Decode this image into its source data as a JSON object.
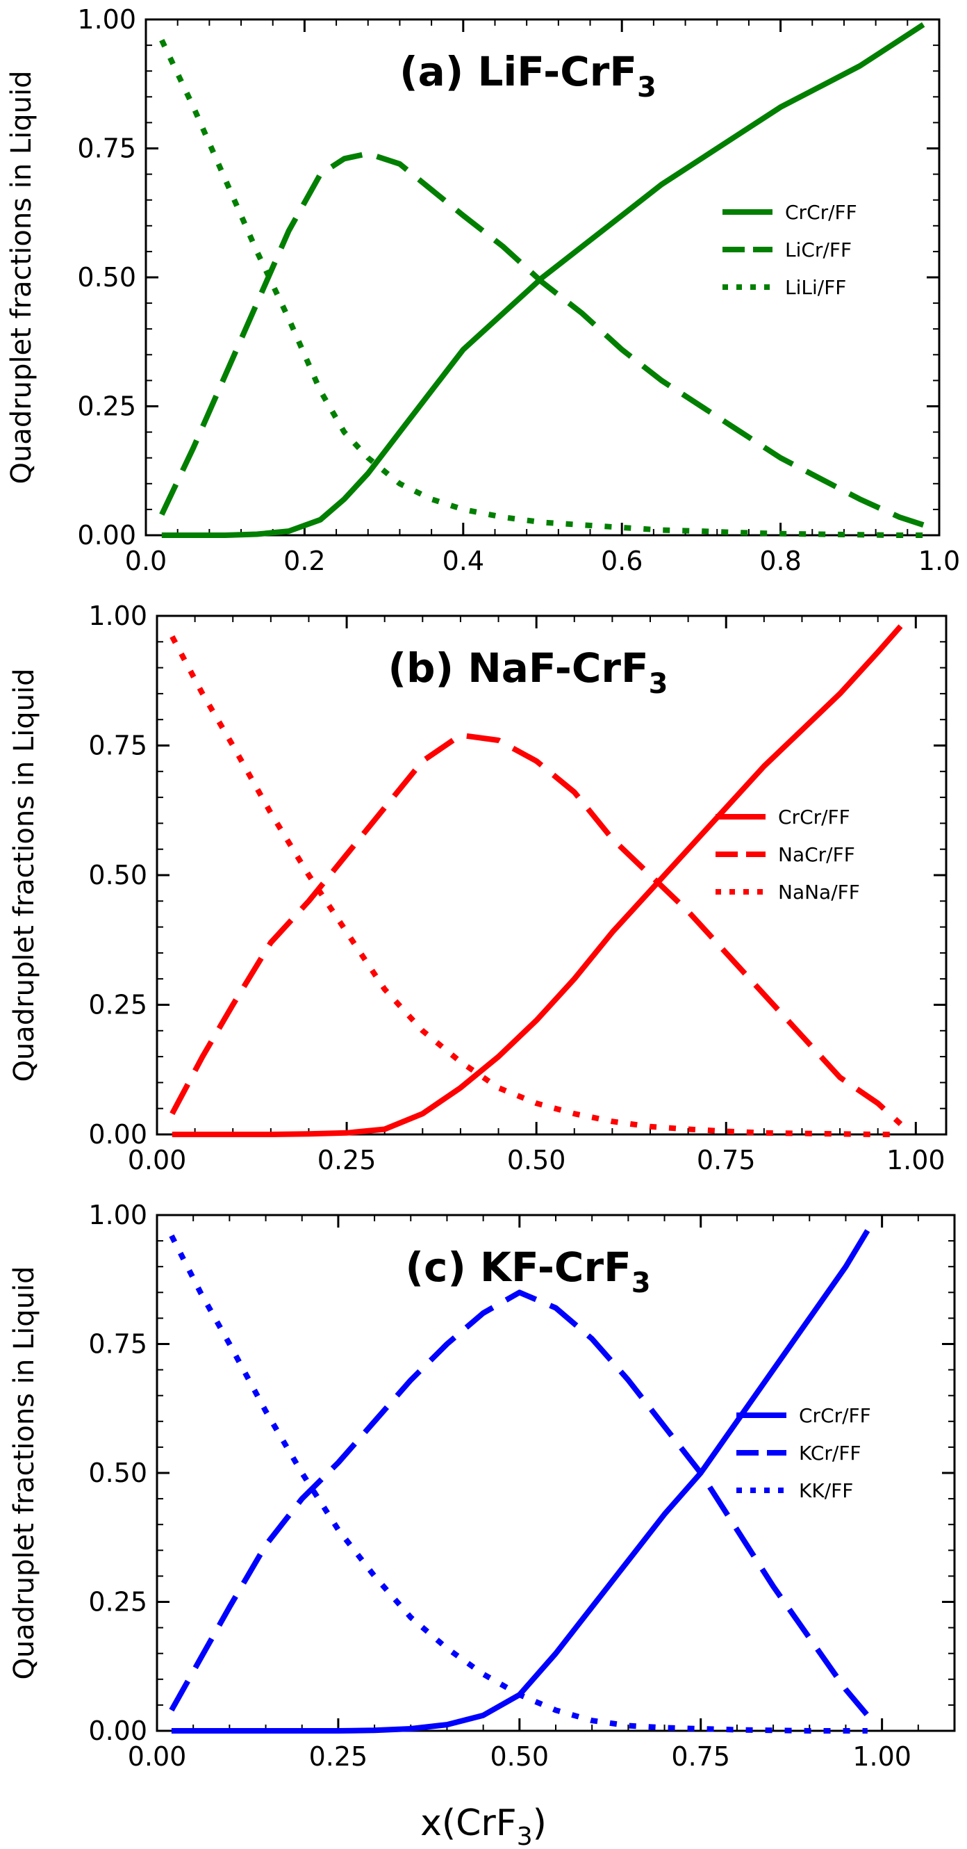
{
  "figure": {
    "x_axis_label_main": "x(CrF",
    "x_axis_label_sub": "3",
    "x_axis_label_end": ")"
  },
  "chart_data": [
    {
      "type": "line",
      "title": "(a) LiF-CrF",
      "title_sub": "3",
      "ylabel": "Quadruplet fractions in Liquid",
      "xlabel": "",
      "xlim": [
        0.0,
        1.0
      ],
      "ylim": [
        0.0,
        1.0
      ],
      "xticks": [
        "0.0",
        "0.2",
        "0.4",
        "0.6",
        "0.8",
        "1.0"
      ],
      "yticks": [
        "0.00",
        "0.25",
        "0.50",
        "0.75",
        "1.00"
      ],
      "color": "#007f00",
      "legend_position": "right",
      "x": [
        0.02,
        0.06,
        0.1,
        0.14,
        0.18,
        0.22,
        0.25,
        0.28,
        0.32,
        0.36,
        0.4,
        0.45,
        0.5,
        0.55,
        0.6,
        0.65,
        0.7,
        0.75,
        0.8,
        0.85,
        0.9,
        0.95,
        0.98
      ],
      "series": [
        {
          "name": "CrCr/FF",
          "style": "solid",
          "values": [
            0.0,
            0.0,
            0.0,
            0.002,
            0.008,
            0.03,
            0.07,
            0.12,
            0.2,
            0.28,
            0.36,
            0.43,
            0.5,
            0.56,
            0.62,
            0.68,
            0.73,
            0.78,
            0.83,
            0.87,
            0.91,
            0.96,
            0.99
          ]
        },
        {
          "name": "LiCr/FF",
          "style": "dashed",
          "values": [
            0.04,
            0.17,
            0.31,
            0.45,
            0.59,
            0.7,
            0.73,
            0.74,
            0.72,
            0.67,
            0.62,
            0.56,
            0.49,
            0.43,
            0.36,
            0.3,
            0.25,
            0.2,
            0.15,
            0.11,
            0.07,
            0.035,
            0.02
          ]
        },
        {
          "name": "LiLi/FF",
          "style": "dotted",
          "values": [
            0.96,
            0.83,
            0.69,
            0.55,
            0.42,
            0.28,
            0.2,
            0.15,
            0.1,
            0.07,
            0.05,
            0.035,
            0.025,
            0.02,
            0.015,
            0.01,
            0.008,
            0.005,
            0.003,
            0.002,
            0.001,
            0.0,
            0.0
          ]
        }
      ]
    },
    {
      "type": "line",
      "title": "(b) NaF-CrF",
      "title_sub": "3",
      "ylabel": "Quadruplet fractions in Liquid",
      "xlabel": "",
      "xlim": [
        0.0,
        1.04
      ],
      "ylim": [
        0.0,
        1.0
      ],
      "xticks": [
        "0.00",
        "0.25",
        "0.50",
        "0.75",
        "1.00"
      ],
      "yticks": [
        "0.00",
        "0.25",
        "0.50",
        "0.75",
        "1.00"
      ],
      "color": "#ff0000",
      "legend_position": "right",
      "x": [
        0.02,
        0.06,
        0.1,
        0.15,
        0.2,
        0.25,
        0.3,
        0.35,
        0.4,
        0.45,
        0.5,
        0.55,
        0.6,
        0.65,
        0.7,
        0.75,
        0.8,
        0.85,
        0.9,
        0.95,
        0.98
      ],
      "series": [
        {
          "name": "CrCr/FF",
          "style": "solid",
          "values": [
            0.0,
            0.0,
            0.0,
            0.0,
            0.001,
            0.003,
            0.01,
            0.04,
            0.09,
            0.15,
            0.22,
            0.3,
            0.39,
            0.47,
            0.55,
            0.63,
            0.71,
            0.78,
            0.85,
            0.93,
            0.98
          ]
        },
        {
          "name": "NaCr/FF",
          "style": "dashed",
          "values": [
            0.04,
            0.15,
            0.25,
            0.37,
            0.45,
            0.54,
            0.63,
            0.72,
            0.77,
            0.76,
            0.72,
            0.66,
            0.57,
            0.5,
            0.43,
            0.35,
            0.27,
            0.19,
            0.11,
            0.06,
            0.02
          ]
        },
        {
          "name": "NaNa/FF",
          "style": "dotted",
          "values": [
            0.96,
            0.85,
            0.75,
            0.62,
            0.5,
            0.39,
            0.28,
            0.2,
            0.14,
            0.09,
            0.06,
            0.04,
            0.025,
            0.015,
            0.01,
            0.006,
            0.003,
            0.002,
            0.001,
            0.0,
            0.0
          ]
        }
      ]
    },
    {
      "type": "line",
      "title": "(c) KF-CrF",
      "title_sub": "3",
      "ylabel": "Quadruplet fractions in Liquid",
      "xlabel": "x(CrF3)",
      "xlim": [
        0.0,
        1.1
      ],
      "ylim": [
        0.0,
        1.0
      ],
      "xticks": [
        "0.00",
        "0.25",
        "0.50",
        "0.75",
        "1.00"
      ],
      "yticks": [
        "0.00",
        "0.25",
        "0.50",
        "0.75",
        "1.00"
      ],
      "color": "#0000ff",
      "legend_position": "right",
      "x": [
        0.02,
        0.06,
        0.1,
        0.15,
        0.2,
        0.25,
        0.3,
        0.35,
        0.4,
        0.45,
        0.5,
        0.55,
        0.6,
        0.65,
        0.7,
        0.75,
        0.8,
        0.85,
        0.9,
        0.95,
        0.98
      ],
      "series": [
        {
          "name": "CrCr/FF",
          "style": "solid",
          "values": [
            0.0,
            0.0,
            0.0,
            0.0,
            0.0,
            0.0,
            0.001,
            0.004,
            0.012,
            0.03,
            0.07,
            0.15,
            0.24,
            0.33,
            0.42,
            0.5,
            0.6,
            0.7,
            0.8,
            0.9,
            0.97
          ]
        },
        {
          "name": "KCr/FF",
          "style": "dashed",
          "values": [
            0.04,
            0.14,
            0.24,
            0.36,
            0.45,
            0.52,
            0.6,
            0.68,
            0.75,
            0.81,
            0.85,
            0.82,
            0.76,
            0.68,
            0.59,
            0.5,
            0.39,
            0.28,
            0.18,
            0.08,
            0.03
          ]
        },
        {
          "name": "KK/FF",
          "style": "dotted",
          "values": [
            0.96,
            0.85,
            0.75,
            0.62,
            0.5,
            0.39,
            0.3,
            0.22,
            0.16,
            0.11,
            0.07,
            0.04,
            0.02,
            0.01,
            0.006,
            0.004,
            0.002,
            0.001,
            0.0,
            0.0,
            0.0
          ]
        }
      ]
    }
  ]
}
